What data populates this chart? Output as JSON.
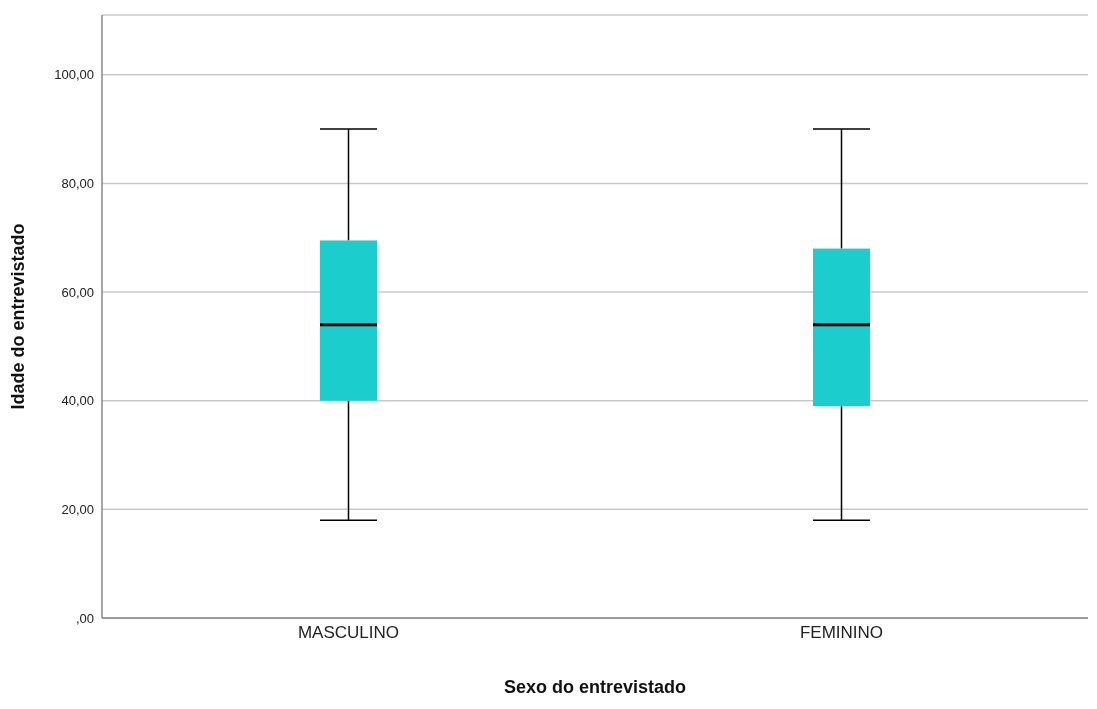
{
  "chart_data": {
    "type": "box",
    "xlabel": "Sexo do entrevistado",
    "ylabel": "Idade do entrevistado",
    "categories": [
      "MASCULINO",
      "FEMININO"
    ],
    "series": [
      {
        "color": "#1ccdcd",
        "boxes": [
          {
            "low": 18,
            "q1": 40,
            "median": 54,
            "q3": 69.5,
            "high": 90
          },
          {
            "low": 18,
            "q1": 39,
            "median": 54,
            "q3": 68,
            "high": 90
          }
        ]
      }
    ],
    "ylim": [
      0,
      111
    ],
    "yticks": [
      {
        "value": 0,
        "label": ",00"
      },
      {
        "value": 20,
        "label": "20,00"
      },
      {
        "value": 40,
        "label": "40,00"
      },
      {
        "value": 60,
        "label": "60,00"
      },
      {
        "value": 80,
        "label": "80,00"
      },
      {
        "value": 100,
        "label": "100,00"
      }
    ],
    "grid": "y"
  }
}
